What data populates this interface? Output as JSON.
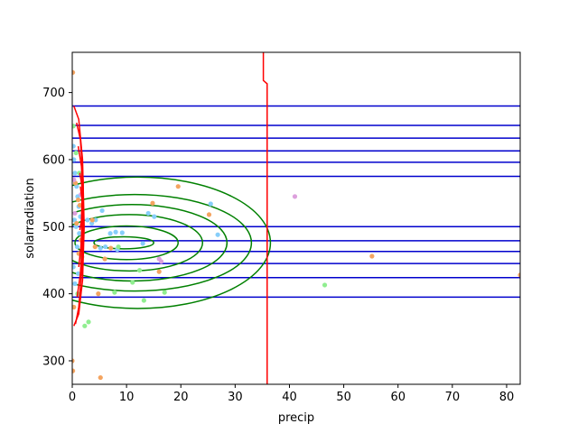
{
  "chart_data": {
    "type": "scatter",
    "title": "",
    "xlabel": "precip",
    "ylabel": "solarradiation",
    "xlim": [
      0,
      82.5
    ],
    "ylim": [
      265,
      760
    ],
    "xticks": [
      0,
      10,
      20,
      30,
      40,
      50,
      60,
      70,
      80
    ],
    "yticks": [
      300,
      400,
      500,
      600,
      700
    ],
    "grid": false,
    "legend": "none",
    "colors": {
      "points_light_blue": "#87cefa",
      "points_orange": "#f4a460",
      "points_light_green": "#90ee90",
      "points_violet": "#dda0dd",
      "horizontal_lines": "#0000cd",
      "red_contour": "#ff0000",
      "green_ellipses": "#008000"
    },
    "horizontal_lines_y": [
      680,
      651,
      632,
      613,
      596,
      575,
      500,
      479,
      463,
      445,
      424,
      395
    ],
    "green_ellipses": {
      "centers_x": [
        9.5,
        10.0,
        10.5,
        11.0,
        11.5,
        12.0
      ],
      "center_y": 476,
      "half_widths": [
        5.5,
        9.5,
        13.5,
        17.5,
        21.5,
        24.5
      ],
      "half_heights": [
        9,
        25,
        42,
        57,
        72,
        98
      ]
    },
    "red_contour": {
      "vertical_x": 35.9,
      "vertical_segment": [
        [
          35.2,
          760
        ],
        [
          35.2,
          718
        ],
        [
          35.9,
          713
        ],
        [
          35.9,
          265
        ]
      ],
      "left_curves": [
        [
          [
            0.3,
            680
          ],
          [
            1.2,
            660
          ],
          [
            1.9,
            600
          ],
          [
            2.2,
            500
          ],
          [
            1.9,
            420
          ],
          [
            1.2,
            370
          ],
          [
            0.3,
            352
          ]
        ],
        [
          [
            0.8,
            655
          ],
          [
            1.5,
            630
          ],
          [
            2.0,
            570
          ],
          [
            2.1,
            500
          ],
          [
            1.8,
            440
          ],
          [
            1.2,
            380
          ],
          [
            0.6,
            355
          ]
        ],
        [
          [
            1.1,
            620
          ],
          [
            1.7,
            590
          ],
          [
            2.0,
            540
          ],
          [
            1.9,
            480
          ],
          [
            1.5,
            430
          ],
          [
            0.9,
            395
          ]
        ],
        [
          [
            1.4,
            580
          ],
          [
            1.8,
            560
          ],
          [
            1.9,
            520
          ],
          [
            1.6,
            470
          ],
          [
            1.2,
            440
          ]
        ],
        [
          [
            1.5,
            560
          ],
          [
            1.8,
            540
          ],
          [
            1.7,
            510
          ],
          [
            1.4,
            495
          ]
        ]
      ]
    },
    "series": [
      {
        "color": "#87cefa",
        "points": [
          [
            0.2,
            620
          ],
          [
            0.3,
            600
          ],
          [
            0.5,
            580
          ],
          [
            0.8,
            560
          ],
          [
            1.0,
            545
          ],
          [
            1.2,
            530
          ],
          [
            1.5,
            515
          ],
          [
            0.4,
            510
          ],
          [
            0.7,
            500
          ],
          [
            1.3,
            490
          ],
          [
            0.9,
            470
          ],
          [
            1.7,
            455
          ],
          [
            0.2,
            440
          ],
          [
            1.1,
            430
          ],
          [
            0.5,
            415
          ],
          [
            4.3,
            510
          ],
          [
            5.2,
            468
          ],
          [
            6.1,
            470
          ],
          [
            7.0,
            490
          ],
          [
            8.0,
            492
          ],
          [
            9.2,
            491
          ],
          [
            8.3,
            466
          ],
          [
            5.5,
            524
          ],
          [
            14.0,
            520
          ],
          [
            15.1,
            515
          ],
          [
            13.0,
            475
          ],
          [
            26.8,
            488
          ],
          [
            25.5,
            534
          ],
          [
            2.8,
            510
          ],
          [
            3.6,
            505
          ]
        ]
      },
      {
        "color": "#f4a460",
        "points": [
          [
            0.1,
            730
          ],
          [
            0.6,
            565
          ],
          [
            1.1,
            540
          ],
          [
            1.4,
            532
          ],
          [
            0.8,
            505
          ],
          [
            1.6,
            480
          ],
          [
            1.2,
            460
          ],
          [
            0.3,
            380
          ],
          [
            0.1,
            285
          ],
          [
            0.0,
            300
          ],
          [
            4.2,
            470
          ],
          [
            4.8,
            400
          ],
          [
            5.2,
            275
          ],
          [
            6.0,
            452
          ],
          [
            7.1,
            468
          ],
          [
            14.8,
            535
          ],
          [
            16.0,
            433
          ],
          [
            19.5,
            560
          ],
          [
            25.2,
            518
          ],
          [
            55.2,
            456
          ],
          [
            82.5,
            428
          ],
          [
            3.7,
            510
          ]
        ]
      },
      {
        "color": "#90ee90",
        "points": [
          [
            0.2,
            650
          ],
          [
            0.7,
            610
          ],
          [
            1.3,
            580
          ],
          [
            1.8,
            455
          ],
          [
            1.0,
            400
          ],
          [
            2.3,
            352
          ],
          [
            3.0,
            358
          ],
          [
            7.8,
            402
          ],
          [
            8.5,
            470
          ],
          [
            11.1,
            417
          ],
          [
            12.4,
            435
          ],
          [
            13.2,
            390
          ],
          [
            17.0,
            402
          ],
          [
            46.5,
            413
          ]
        ]
      },
      {
        "color": "#dda0dd",
        "points": [
          [
            0.3,
            570
          ],
          [
            1.6,
            548
          ],
          [
            0.5,
            520
          ],
          [
            16.0,
            452
          ],
          [
            16.4,
            448
          ],
          [
            41.0,
            545
          ]
        ]
      }
    ]
  }
}
